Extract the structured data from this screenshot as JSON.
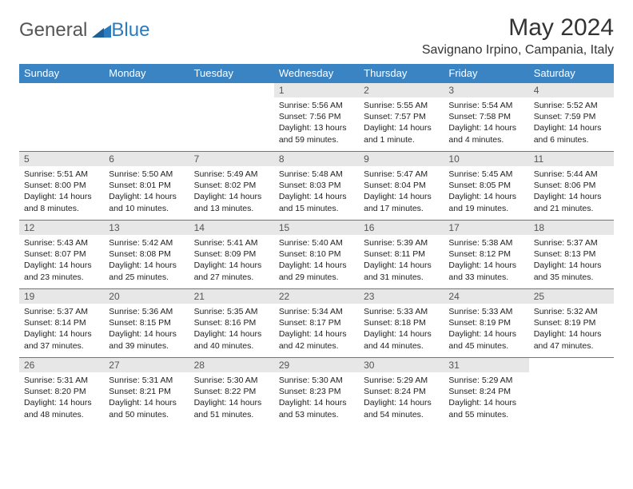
{
  "logo": {
    "text1": "General",
    "text2": "Blue"
  },
  "title": "May 2024",
  "location": "Savignano Irpino, Campania, Italy",
  "colors": {
    "header_bg": "#3b84c4",
    "header_text": "#ffffff",
    "daynum_bg": "#e7e7e7",
    "row_border": "#3b84c4",
    "logo_blue": "#2a7bbf"
  },
  "weekdays": [
    "Sunday",
    "Monday",
    "Tuesday",
    "Wednesday",
    "Thursday",
    "Friday",
    "Saturday"
  ],
  "weeks": [
    [
      {
        "empty": true
      },
      {
        "empty": true
      },
      {
        "empty": true
      },
      {
        "num": "1",
        "sunrise": "5:56 AM",
        "sunset": "7:56 PM",
        "daylight": "13 hours and 59 minutes."
      },
      {
        "num": "2",
        "sunrise": "5:55 AM",
        "sunset": "7:57 PM",
        "daylight": "14 hours and 1 minute."
      },
      {
        "num": "3",
        "sunrise": "5:54 AM",
        "sunset": "7:58 PM",
        "daylight": "14 hours and 4 minutes."
      },
      {
        "num": "4",
        "sunrise": "5:52 AM",
        "sunset": "7:59 PM",
        "daylight": "14 hours and 6 minutes."
      }
    ],
    [
      {
        "num": "5",
        "sunrise": "5:51 AM",
        "sunset": "8:00 PM",
        "daylight": "14 hours and 8 minutes."
      },
      {
        "num": "6",
        "sunrise": "5:50 AM",
        "sunset": "8:01 PM",
        "daylight": "14 hours and 10 minutes."
      },
      {
        "num": "7",
        "sunrise": "5:49 AM",
        "sunset": "8:02 PM",
        "daylight": "14 hours and 13 minutes."
      },
      {
        "num": "8",
        "sunrise": "5:48 AM",
        "sunset": "8:03 PM",
        "daylight": "14 hours and 15 minutes."
      },
      {
        "num": "9",
        "sunrise": "5:47 AM",
        "sunset": "8:04 PM",
        "daylight": "14 hours and 17 minutes."
      },
      {
        "num": "10",
        "sunrise": "5:45 AM",
        "sunset": "8:05 PM",
        "daylight": "14 hours and 19 minutes."
      },
      {
        "num": "11",
        "sunrise": "5:44 AM",
        "sunset": "8:06 PM",
        "daylight": "14 hours and 21 minutes."
      }
    ],
    [
      {
        "num": "12",
        "sunrise": "5:43 AM",
        "sunset": "8:07 PM",
        "daylight": "14 hours and 23 minutes."
      },
      {
        "num": "13",
        "sunrise": "5:42 AM",
        "sunset": "8:08 PM",
        "daylight": "14 hours and 25 minutes."
      },
      {
        "num": "14",
        "sunrise": "5:41 AM",
        "sunset": "8:09 PM",
        "daylight": "14 hours and 27 minutes."
      },
      {
        "num": "15",
        "sunrise": "5:40 AM",
        "sunset": "8:10 PM",
        "daylight": "14 hours and 29 minutes."
      },
      {
        "num": "16",
        "sunrise": "5:39 AM",
        "sunset": "8:11 PM",
        "daylight": "14 hours and 31 minutes."
      },
      {
        "num": "17",
        "sunrise": "5:38 AM",
        "sunset": "8:12 PM",
        "daylight": "14 hours and 33 minutes."
      },
      {
        "num": "18",
        "sunrise": "5:37 AM",
        "sunset": "8:13 PM",
        "daylight": "14 hours and 35 minutes."
      }
    ],
    [
      {
        "num": "19",
        "sunrise": "5:37 AM",
        "sunset": "8:14 PM",
        "daylight": "14 hours and 37 minutes."
      },
      {
        "num": "20",
        "sunrise": "5:36 AM",
        "sunset": "8:15 PM",
        "daylight": "14 hours and 39 minutes."
      },
      {
        "num": "21",
        "sunrise": "5:35 AM",
        "sunset": "8:16 PM",
        "daylight": "14 hours and 40 minutes."
      },
      {
        "num": "22",
        "sunrise": "5:34 AM",
        "sunset": "8:17 PM",
        "daylight": "14 hours and 42 minutes."
      },
      {
        "num": "23",
        "sunrise": "5:33 AM",
        "sunset": "8:18 PM",
        "daylight": "14 hours and 44 minutes."
      },
      {
        "num": "24",
        "sunrise": "5:33 AM",
        "sunset": "8:19 PM",
        "daylight": "14 hours and 45 minutes."
      },
      {
        "num": "25",
        "sunrise": "5:32 AM",
        "sunset": "8:19 PM",
        "daylight": "14 hours and 47 minutes."
      }
    ],
    [
      {
        "num": "26",
        "sunrise": "5:31 AM",
        "sunset": "8:20 PM",
        "daylight": "14 hours and 48 minutes."
      },
      {
        "num": "27",
        "sunrise": "5:31 AM",
        "sunset": "8:21 PM",
        "daylight": "14 hours and 50 minutes."
      },
      {
        "num": "28",
        "sunrise": "5:30 AM",
        "sunset": "8:22 PM",
        "daylight": "14 hours and 51 minutes."
      },
      {
        "num": "29",
        "sunrise": "5:30 AM",
        "sunset": "8:23 PM",
        "daylight": "14 hours and 53 minutes."
      },
      {
        "num": "30",
        "sunrise": "5:29 AM",
        "sunset": "8:24 PM",
        "daylight": "14 hours and 54 minutes."
      },
      {
        "num": "31",
        "sunrise": "5:29 AM",
        "sunset": "8:24 PM",
        "daylight": "14 hours and 55 minutes."
      },
      {
        "empty": true
      }
    ]
  ],
  "labels": {
    "sunrise": "Sunrise:",
    "sunset": "Sunset:",
    "daylight": "Daylight:"
  }
}
